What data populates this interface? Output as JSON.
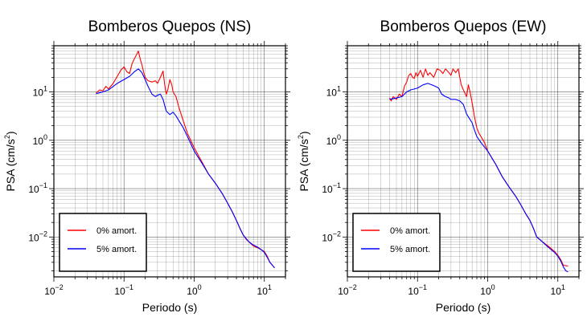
{
  "colors": {
    "series_0": "#ff0000",
    "series_5": "#0000ff",
    "grid": "#000000",
    "frame": "#000000"
  },
  "chart_data": [
    {
      "type": "line",
      "title": "Bomberos Quepos (NS)",
      "xlabel": "Periodo (s)",
      "ylabel_base": "PSA (cm/s",
      "ylabel_exp": "2",
      "ylabel_close": ")",
      "xscale": "log",
      "yscale": "log",
      "xlim": [
        0.01,
        20
      ],
      "ylim": [
        0.0015,
        90
      ],
      "grid": true,
      "legend_position": "bottom-left",
      "xticks": [
        {
          "base": "10",
          "exp": "−2",
          "value": 0.01
        },
        {
          "base": "10",
          "exp": "−1",
          "value": 0.1
        },
        {
          "base": "10",
          "exp": "0",
          "value": 1
        },
        {
          "base": "10",
          "exp": "1",
          "value": 10
        }
      ],
      "yticks": [
        {
          "base": "10",
          "exp": "−2",
          "value": 0.01
        },
        {
          "base": "10",
          "exp": "−1",
          "value": 0.1
        },
        {
          "base": "10",
          "exp": "0",
          "value": 1
        },
        {
          "base": "10",
          "exp": "1",
          "value": 10
        }
      ],
      "series": [
        {
          "name": "0% amort.",
          "color": "#ff0000",
          "points": [
            [
              0.04,
              9.5
            ],
            [
              0.045,
              11
            ],
            [
              0.05,
              10.5
            ],
            [
              0.055,
              13
            ],
            [
              0.06,
              11.5
            ],
            [
              0.07,
              15
            ],
            [
              0.08,
              21
            ],
            [
              0.09,
              28
            ],
            [
              0.1,
              33
            ],
            [
              0.11,
              26
            ],
            [
              0.12,
              24
            ],
            [
              0.13,
              38
            ],
            [
              0.14,
              48
            ],
            [
              0.15,
              58
            ],
            [
              0.16,
              70
            ],
            [
              0.17,
              48
            ],
            [
              0.18,
              36
            ],
            [
              0.19,
              26
            ],
            [
              0.2,
              20
            ],
            [
              0.22,
              17
            ],
            [
              0.25,
              16
            ],
            [
              0.28,
              17
            ],
            [
              0.3,
              15
            ],
            [
              0.33,
              20
            ],
            [
              0.36,
              27
            ],
            [
              0.38,
              14
            ],
            [
              0.4,
              9
            ],
            [
              0.42,
              11
            ],
            [
              0.45,
              18
            ],
            [
              0.48,
              14
            ],
            [
              0.5,
              10
            ],
            [
              0.55,
              8
            ],
            [
              0.6,
              5
            ],
            [
              0.7,
              2.5
            ],
            [
              0.8,
              1.4
            ],
            [
              1.0,
              0.7
            ],
            [
              1.3,
              0.35
            ],
            [
              1.6,
              0.2
            ],
            [
              2.0,
              0.13
            ],
            [
              2.5,
              0.08
            ],
            [
              3.0,
              0.05
            ],
            [
              3.5,
              0.033
            ],
            [
              4.0,
              0.022
            ],
            [
              4.5,
              0.015
            ],
            [
              5.0,
              0.011
            ],
            [
              5.5,
              0.009
            ],
            [
              6.0,
              0.008
            ],
            [
              7.0,
              0.0065
            ],
            [
              8.0,
              0.006
            ],
            [
              9.0,
              0.0055
            ],
            [
              10,
              0.005
            ],
            [
              11,
              0.004
            ],
            [
              12,
              0.003
            ],
            [
              14,
              0.0023
            ]
          ]
        },
        {
          "name": "5% amort.",
          "color": "#0000ff",
          "points": [
            [
              0.04,
              9.2
            ],
            [
              0.05,
              10
            ],
            [
              0.06,
              11
            ],
            [
              0.07,
              13
            ],
            [
              0.08,
              15
            ],
            [
              0.1,
              18
            ],
            [
              0.12,
              21
            ],
            [
              0.14,
              26
            ],
            [
              0.16,
              30
            ],
            [
              0.18,
              25
            ],
            [
              0.2,
              18
            ],
            [
              0.22,
              13
            ],
            [
              0.25,
              9
            ],
            [
              0.28,
              8
            ],
            [
              0.3,
              8.5
            ],
            [
              0.33,
              9
            ],
            [
              0.36,
              7
            ],
            [
              0.4,
              4
            ],
            [
              0.45,
              3.4
            ],
            [
              0.5,
              3.8
            ],
            [
              0.55,
              3.2
            ],
            [
              0.6,
              2.6
            ],
            [
              0.7,
              1.8
            ],
            [
              0.8,
              1.2
            ],
            [
              1.0,
              0.6
            ],
            [
              1.3,
              0.33
            ],
            [
              1.6,
              0.2
            ],
            [
              2.0,
              0.13
            ],
            [
              2.5,
              0.08
            ],
            [
              3.0,
              0.05
            ],
            [
              3.5,
              0.033
            ],
            [
              4.0,
              0.022
            ],
            [
              4.5,
              0.015
            ],
            [
              5.0,
              0.011
            ],
            [
              6.0,
              0.008
            ],
            [
              7.0,
              0.0068
            ],
            [
              8.0,
              0.0062
            ],
            [
              9.0,
              0.0055
            ],
            [
              10,
              0.0048
            ],
            [
              11,
              0.0038
            ],
            [
              12,
              0.003
            ],
            [
              14,
              0.0023
            ]
          ]
        }
      ]
    },
    {
      "type": "line",
      "title": "Bomberos Quepos (EW)",
      "xlabel": "Periodo (s)",
      "ylabel_base": "PSA (cm/s",
      "ylabel_exp": "2",
      "ylabel_close": ")",
      "xscale": "log",
      "yscale": "log",
      "xlim": [
        0.01,
        20
      ],
      "ylim": [
        0.0015,
        90
      ],
      "grid": true,
      "legend_position": "bottom-left",
      "xticks": [
        {
          "base": "10",
          "exp": "−2",
          "value": 0.01
        },
        {
          "base": "10",
          "exp": "−1",
          "value": 0.1
        },
        {
          "base": "10",
          "exp": "0",
          "value": 1
        },
        {
          "base": "10",
          "exp": "1",
          "value": 10
        }
      ],
      "yticks": [
        {
          "base": "10",
          "exp": "−2",
          "value": 0.01
        },
        {
          "base": "10",
          "exp": "−1",
          "value": 0.1
        },
        {
          "base": "10",
          "exp": "0",
          "value": 1
        },
        {
          "base": "10",
          "exp": "1",
          "value": 10
        }
      ],
      "series": [
        {
          "name": "0% amort.",
          "color": "#ff0000",
          "points": [
            [
              0.04,
              7.5
            ],
            [
              0.042,
              6.5
            ],
            [
              0.045,
              8
            ],
            [
              0.05,
              7
            ],
            [
              0.055,
              9
            ],
            [
              0.06,
              8
            ],
            [
              0.065,
              13
            ],
            [
              0.07,
              16
            ],
            [
              0.075,
              22
            ],
            [
              0.08,
              24
            ],
            [
              0.085,
              20
            ],
            [
              0.09,
              19
            ],
            [
              0.095,
              25
            ],
            [
              0.1,
              21
            ],
            [
              0.11,
              28
            ],
            [
              0.12,
              20
            ],
            [
              0.13,
              30
            ],
            [
              0.14,
              22
            ],
            [
              0.15,
              25
            ],
            [
              0.17,
              20
            ],
            [
              0.19,
              30
            ],
            [
              0.21,
              28
            ],
            [
              0.23,
              24
            ],
            [
              0.25,
              30
            ],
            [
              0.28,
              25
            ],
            [
              0.3,
              22
            ],
            [
              0.32,
              30
            ],
            [
              0.35,
              25
            ],
            [
              0.38,
              30
            ],
            [
              0.4,
              20
            ],
            [
              0.42,
              14
            ],
            [
              0.45,
              11
            ],
            [
              0.5,
              8
            ],
            [
              0.53,
              14
            ],
            [
              0.56,
              10
            ],
            [
              0.6,
              6
            ],
            [
              0.65,
              3
            ],
            [
              0.7,
              1.8
            ],
            [
              0.75,
              1.4
            ],
            [
              0.8,
              1.2
            ],
            [
              0.9,
              0.9
            ],
            [
              1.0,
              0.6
            ],
            [
              1.3,
              0.32
            ],
            [
              1.6,
              0.18
            ],
            [
              2.0,
              0.11
            ],
            [
              2.5,
              0.07
            ],
            [
              3.0,
              0.045
            ],
            [
              3.5,
              0.03
            ],
            [
              4.0,
              0.022
            ],
            [
              4.5,
              0.015
            ],
            [
              5.0,
              0.01
            ],
            [
              5.5,
              0.009
            ],
            [
              6.0,
              0.008
            ],
            [
              7.0,
              0.0068
            ],
            [
              8.0,
              0.0058
            ],
            [
              9.0,
              0.005
            ],
            [
              10,
              0.0042
            ],
            [
              11,
              0.0034
            ],
            [
              12,
              0.0026
            ],
            [
              14,
              0.0025
            ]
          ]
        },
        {
          "name": "5% amort.",
          "color": "#0000ff",
          "points": [
            [
              0.04,
              7
            ],
            [
              0.05,
              7.5
            ],
            [
              0.06,
              8
            ],
            [
              0.07,
              10
            ],
            [
              0.08,
              11
            ],
            [
              0.09,
              11.5
            ],
            [
              0.1,
              12
            ],
            [
              0.12,
              14
            ],
            [
              0.14,
              15
            ],
            [
              0.16,
              14
            ],
            [
              0.18,
              13
            ],
            [
              0.2,
              12
            ],
            [
              0.22,
              9
            ],
            [
              0.25,
              8
            ],
            [
              0.28,
              7.5
            ],
            [
              0.3,
              7
            ],
            [
              0.35,
              7
            ],
            [
              0.4,
              6.5
            ],
            [
              0.45,
              5.5
            ],
            [
              0.5,
              3.5
            ],
            [
              0.55,
              2.8
            ],
            [
              0.6,
              2.3
            ],
            [
              0.65,
              1.6
            ],
            [
              0.7,
              1.2
            ],
            [
              0.8,
              0.9
            ],
            [
              1.0,
              0.6
            ],
            [
              1.3,
              0.32
            ],
            [
              1.6,
              0.18
            ],
            [
              2.0,
              0.11
            ],
            [
              2.5,
              0.07
            ],
            [
              3.0,
              0.045
            ],
            [
              3.5,
              0.03
            ],
            [
              4.0,
              0.022
            ],
            [
              4.5,
              0.015
            ],
            [
              5.0,
              0.01
            ],
            [
              6.0,
              0.008
            ],
            [
              7.0,
              0.0065
            ],
            [
              8.0,
              0.0055
            ],
            [
              9.0,
              0.0048
            ],
            [
              10,
              0.004
            ],
            [
              11,
              0.0032
            ],
            [
              12,
              0.0024
            ],
            [
              13,
              0.002
            ],
            [
              14,
              0.0019
            ]
          ]
        }
      ]
    }
  ]
}
